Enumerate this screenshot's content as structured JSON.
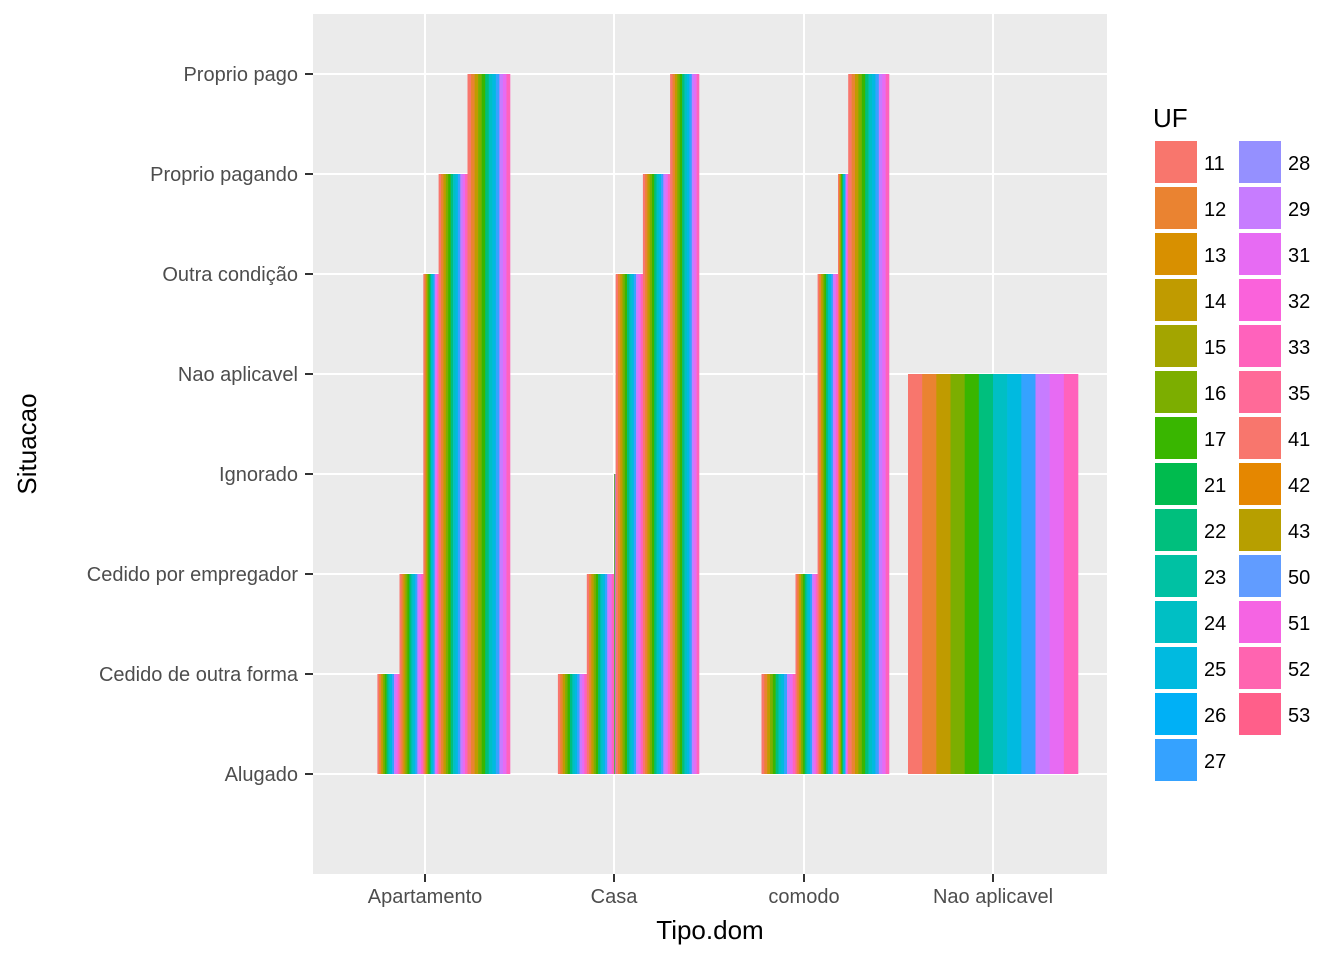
{
  "chart_data": {
    "type": "bar",
    "xlabel": "Tipo.dom",
    "ylabel": "Situacao",
    "x_categories": [
      "Apartamento",
      "Casa",
      "comodo",
      "Nao aplicavel"
    ],
    "y_categories": [
      "Alugado",
      "Cedido de outra forma",
      "Cedido por empregador",
      "Ignorado",
      "Nao aplicavel",
      "Outra condição",
      "Proprio pagando",
      "Proprio pago"
    ],
    "legend": {
      "title": "UF",
      "placement": "right",
      "entries": [
        {
          "label": "11",
          "color": "#F8766D"
        },
        {
          "label": "12",
          "color": "#EA8331"
        },
        {
          "label": "13",
          "color": "#D89000"
        },
        {
          "label": "14",
          "color": "#C09B00"
        },
        {
          "label": "15",
          "color": "#A3A500"
        },
        {
          "label": "16",
          "color": "#7CAE00"
        },
        {
          "label": "17",
          "color": "#39B600"
        },
        {
          "label": "21",
          "color": "#00BB4E"
        },
        {
          "label": "22",
          "color": "#00BF7D"
        },
        {
          "label": "23",
          "color": "#00C1A3"
        },
        {
          "label": "24",
          "color": "#00BFC4"
        },
        {
          "label": "25",
          "color": "#00BAE0"
        },
        {
          "label": "26",
          "color": "#00B0F6"
        },
        {
          "label": "27",
          "color": "#35A2FF"
        },
        {
          "label": "28",
          "color": "#9590FF"
        },
        {
          "label": "29",
          "color": "#C77CFF"
        },
        {
          "label": "31",
          "color": "#E76BF3"
        },
        {
          "label": "32",
          "color": "#FA62DB"
        },
        {
          "label": "33",
          "color": "#FF62BC"
        },
        {
          "label": "35",
          "color": "#FF6A98"
        },
        {
          "label": "41",
          "color": "#F8766D"
        },
        {
          "label": "42",
          "color": "#E58700"
        },
        {
          "label": "43",
          "color": "#B79F00"
        },
        {
          "label": "50",
          "color": "#619CFF"
        },
        {
          "label": "51",
          "color": "#F564E3"
        },
        {
          "label": "52",
          "color": "#FF64B0"
        },
        {
          "label": "53",
          "color": "#FF5F8A"
        }
      ]
    },
    "grid": true,
    "groups": [
      {
        "x": "Apartamento",
        "segments": [
          {
            "y": "Alugado",
            "width_fraction": 0.22
          },
          {
            "y": "Cedido de outra forma",
            "width_fraction": 0.13
          },
          {
            "y": "Cedido por empregador",
            "width_fraction": 0.14
          },
          {
            "y": "Nao aplicavel",
            "width_fraction": 0.0
          },
          {
            "y": "Outra condição",
            "width_fraction": 0.09
          },
          {
            "y": "Proprio pagando",
            "width_fraction": 0.17
          },
          {
            "y": "Proprio pago",
            "width_fraction": 0.25
          }
        ]
      },
      {
        "x": "Casa",
        "segments": [
          {
            "y": "Alugado",
            "width_fraction": 0.17
          },
          {
            "y": "Cedido de outra forma",
            "width_fraction": 0.17
          },
          {
            "y": "Cedido por empregador",
            "width_fraction": 0.16
          },
          {
            "y": "Ignorado",
            "width_fraction": 0.01
          },
          {
            "y": "Outra condição",
            "width_fraction": 0.16
          },
          {
            "y": "Proprio pagando",
            "width_fraction": 0.16
          },
          {
            "y": "Proprio pago",
            "width_fraction": 0.17
          }
        ]
      },
      {
        "x": "comodo",
        "segments": [
          {
            "y": "Alugado",
            "width_fraction": 0.25
          },
          {
            "y": "Cedido de outra forma",
            "width_fraction": 0.2
          },
          {
            "y": "Cedido por empregador",
            "width_fraction": 0.13
          },
          {
            "y": "Outra condição",
            "width_fraction": 0.12
          },
          {
            "y": "Proprio pagando",
            "width_fraction": 0.06
          },
          {
            "y": "Proprio pago",
            "width_fraction": 0.24
          }
        ]
      },
      {
        "x": "Nao aplicavel",
        "segments": [
          {
            "y": "Nao aplicavel",
            "width_fraction": 1.0
          }
        ]
      }
    ]
  }
}
